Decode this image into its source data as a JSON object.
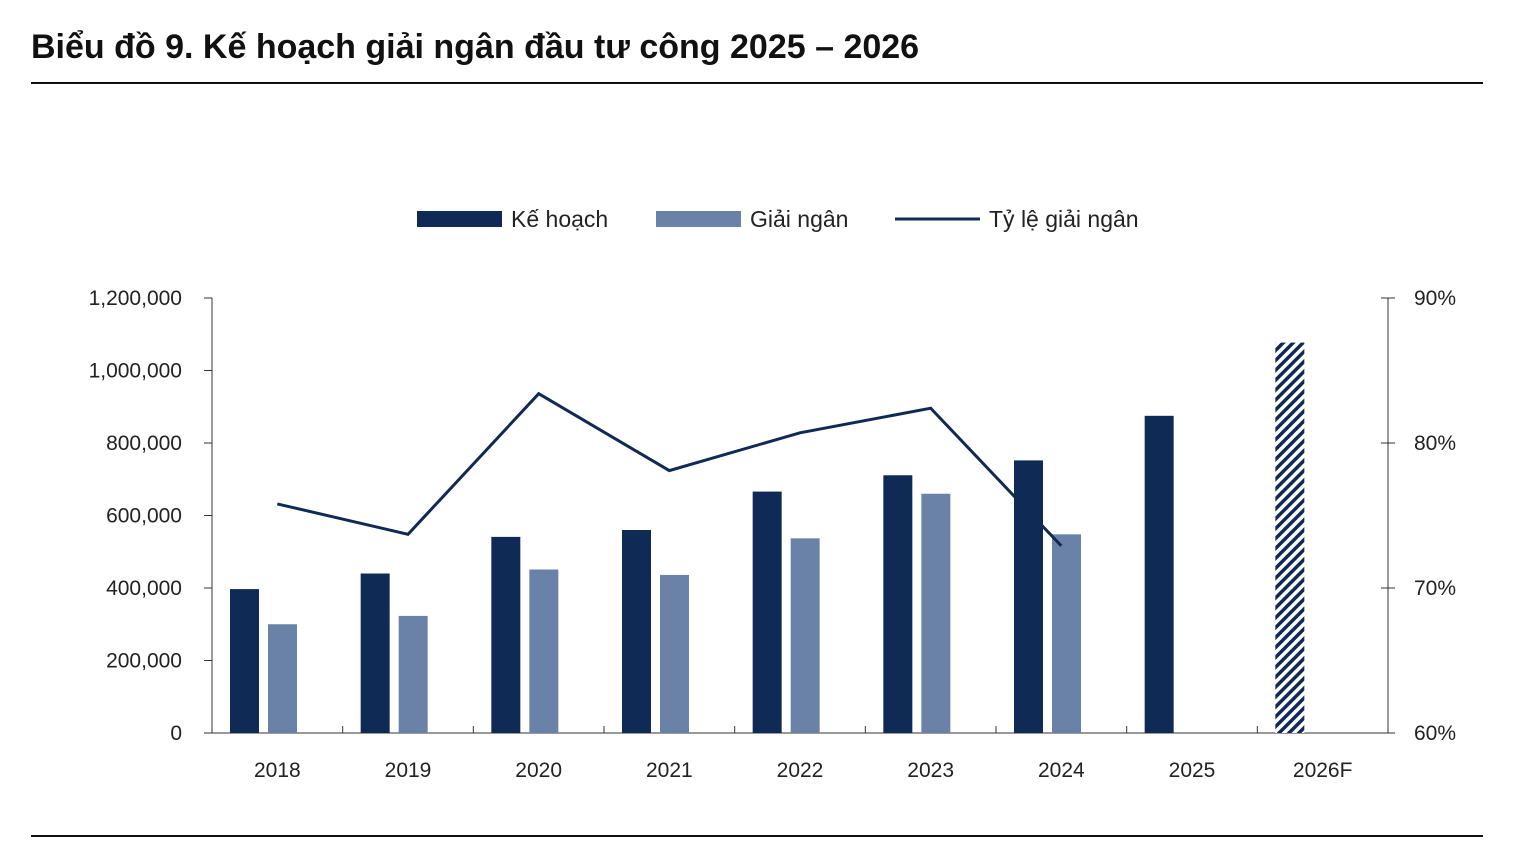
{
  "title": "Biểu đồ 9. Kế hoạch giải ngân đầu tư công 2025 – 2026",
  "chart_data": {
    "type": "bar",
    "categories": [
      "2018",
      "2019",
      "2020",
      "2021",
      "2022",
      "2023",
      "2024",
      "2025",
      "2026F"
    ],
    "series": [
      {
        "name": "Kế hoạch",
        "kind": "bar",
        "color": "#0f2a55",
        "values": [
          397000,
          440000,
          541000,
          560000,
          666000,
          711000,
          752000,
          875000,
          1077000
        ],
        "forecast_hatched": [
          false,
          false,
          false,
          false,
          false,
          false,
          false,
          false,
          true
        ]
      },
      {
        "name": "Giải ngân",
        "kind": "bar",
        "color": "#6b82a8",
        "values": [
          300000,
          323000,
          451000,
          436000,
          537000,
          660000,
          548000,
          null,
          null
        ]
      },
      {
        "name": "Tỷ lệ giải ngân",
        "kind": "line",
        "axis": "right",
        "color": "#0f2a55",
        "values": [
          75.8,
          73.7,
          83.4,
          78.1,
          80.7,
          82.4,
          72.9,
          null,
          null
        ]
      }
    ],
    "y_left": {
      "ylim": [
        0,
        1200000
      ],
      "ticks": [
        "0",
        "200,000",
        "400,000",
        "600,000",
        "800,000",
        "1,000,000",
        "1,200,000"
      ]
    },
    "y_right": {
      "ylim": [
        60,
        90
      ],
      "ticks": [
        "60%",
        "70%",
        "80%",
        "90%"
      ]
    },
    "legend": {
      "placement": "top",
      "labels": [
        "Kế hoạch",
        "Giải ngân",
        "Tỷ lệ giải ngân"
      ]
    },
    "grid": false
  }
}
